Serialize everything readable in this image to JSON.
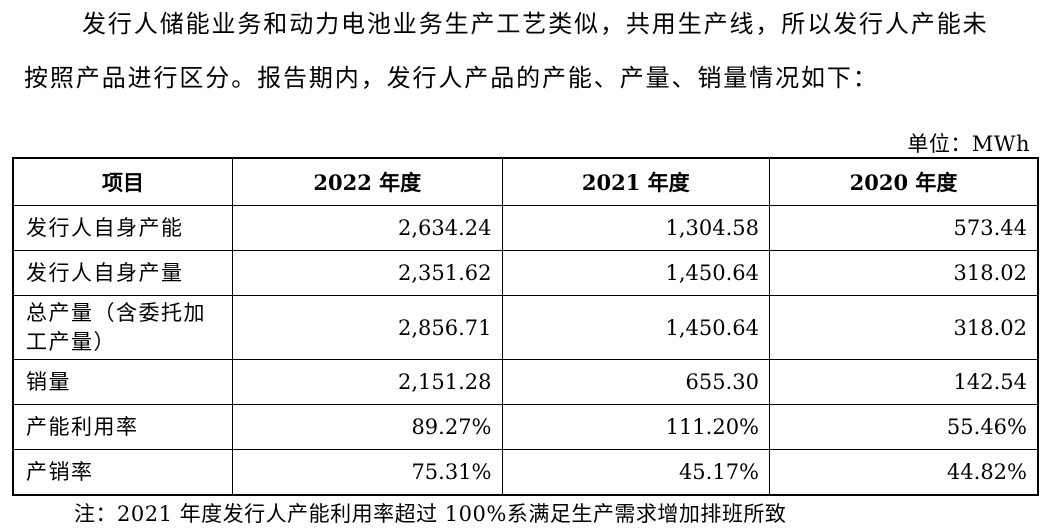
{
  "paragraph": {
    "line1": "发行人储能业务和动力电池业务生产工艺类似，共用生产线，所以发行人产能未",
    "line2": "按照产品进行区分。报告期内，发行人产品的产能、产量、销量情况如下："
  },
  "unit_label": "单位：MWh",
  "table": {
    "headers": [
      "项目",
      "2022 年度",
      "2021 年度",
      "2020 年度"
    ],
    "rows": [
      {
        "label": "发行人自身产能",
        "values": [
          "2,634.24",
          "1,304.58",
          "573.44"
        ]
      },
      {
        "label": "发行人自身产量",
        "values": [
          "2,351.62",
          "1,450.64",
          "318.02"
        ]
      },
      {
        "label": "总产量（含委托加工产量）",
        "label_line1": "总产量（含委托加",
        "label_line2": "工产量）",
        "values": [
          "2,856.71",
          "1,450.64",
          "318.02"
        ]
      },
      {
        "label": "销量",
        "values": [
          "2,151.28",
          "655.30",
          "142.54"
        ]
      },
      {
        "label": "产能利用率",
        "values": [
          "89.27%",
          "111.20%",
          "55.46%"
        ]
      },
      {
        "label": "产销率",
        "values": [
          "75.31%",
          "45.17%",
          "44.82%"
        ]
      }
    ]
  },
  "note": "注：2021 年度发行人产能利用率超过 100%系满足生产需求增加排班所致"
}
